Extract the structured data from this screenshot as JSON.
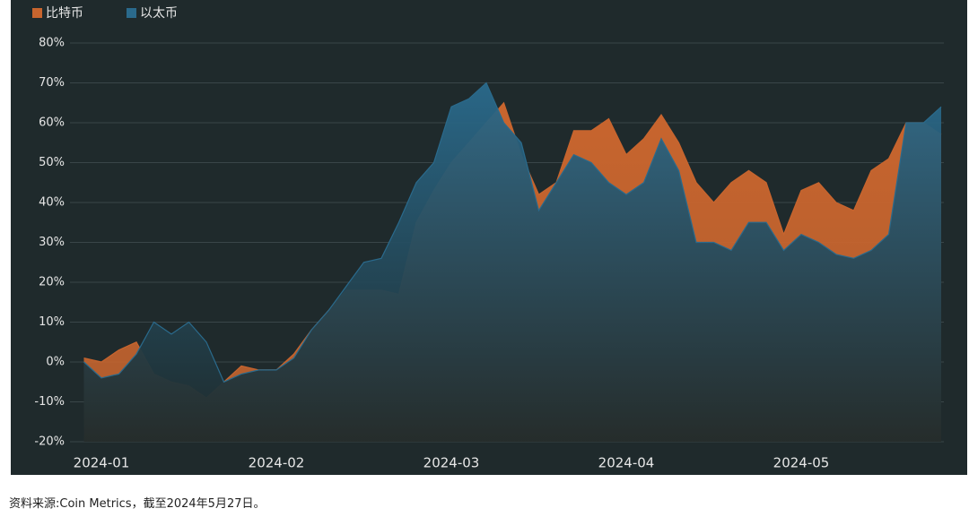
{
  "chart_data": {
    "type": "area",
    "categories": [
      null,
      "2024-01",
      null,
      null,
      null,
      null,
      null,
      null,
      null,
      null,
      null,
      "2024-02",
      null,
      null,
      null,
      null,
      null,
      null,
      null,
      null,
      null,
      "2024-03",
      null,
      null,
      null,
      null,
      null,
      null,
      null,
      null,
      null,
      "2024-04",
      null,
      null,
      null,
      null,
      null,
      null,
      null,
      null,
      null,
      "2024-05",
      null,
      null,
      null,
      null,
      null,
      null,
      null,
      null
    ],
    "series": [
      {
        "name": "比特币",
        "color": "#c8652e",
        "values": [
          1,
          0,
          3,
          5,
          -3,
          -5,
          -6,
          -9,
          -5,
          -1,
          -2,
          -2,
          2,
          8,
          13,
          18,
          18,
          18,
          17,
          35,
          43,
          50,
          55,
          60,
          65,
          52,
          42,
          45,
          58,
          58,
          61,
          52,
          56,
          62,
          55,
          45,
          40,
          45,
          48,
          45,
          32,
          43,
          45,
          40,
          38,
          48,
          51,
          60,
          60,
          57
        ]
      },
      {
        "name": "以太币",
        "color": "#2a6a8c",
        "values": [
          0,
          -4,
          -3,
          2,
          10,
          7,
          10,
          5,
          -5,
          -3,
          -2,
          -2,
          1,
          8,
          13,
          19,
          25,
          26,
          35,
          45,
          50,
          64,
          66,
          70,
          60,
          55,
          38,
          45,
          52,
          50,
          45,
          42,
          45,
          56,
          48,
          30,
          30,
          28,
          35,
          35,
          28,
          32,
          30,
          27,
          26,
          28,
          32,
          60,
          60,
          64
        ]
      }
    ],
    "ylim": [
      -20,
      80
    ],
    "yticks": [
      {
        "value": -20,
        "label": "-20%"
      },
      {
        "value": -10,
        "label": "-10%"
      },
      {
        "value": 0,
        "label": "0%"
      },
      {
        "value": 10,
        "label": "10%"
      },
      {
        "value": 20,
        "label": "20%"
      },
      {
        "value": 30,
        "label": "30%"
      },
      {
        "value": 40,
        "label": "40%"
      },
      {
        "value": 50,
        "label": "50%"
      },
      {
        "value": 60,
        "label": "60%"
      },
      {
        "value": 70,
        "label": "70%"
      },
      {
        "value": 80,
        "label": "80%"
      }
    ],
    "grid": true,
    "legend": "top-left"
  },
  "note": "资料来源:Coin Metrics，截至2024年5月27日。"
}
